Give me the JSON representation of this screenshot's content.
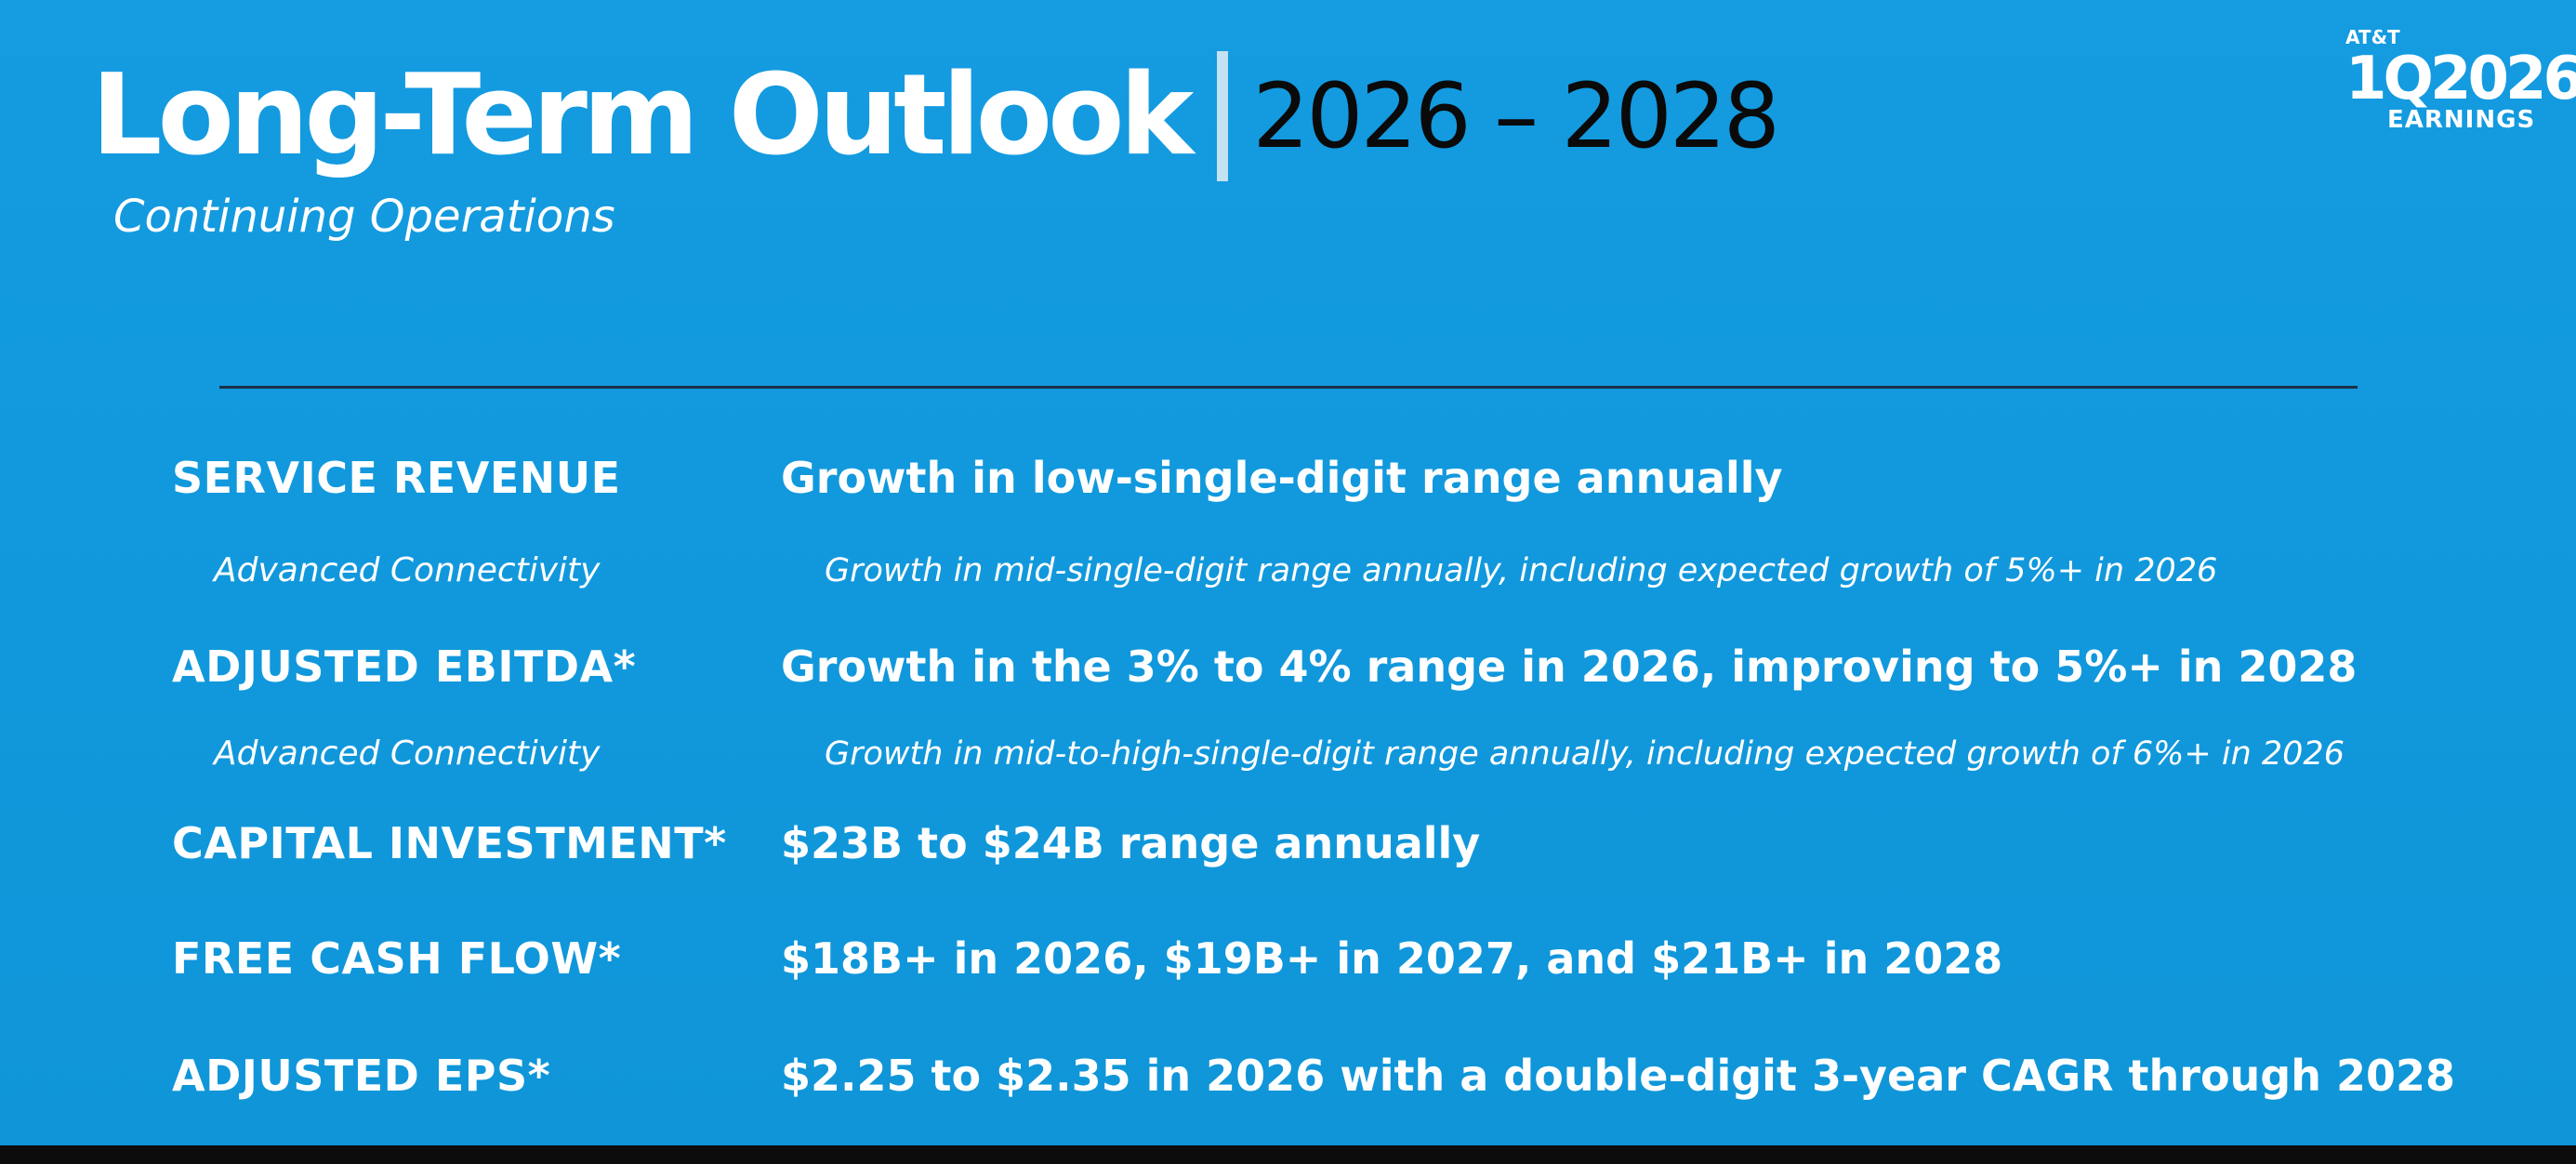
{
  "header": {
    "title": "Long-Term Outlook",
    "years": "2026 – 2028",
    "subtitle": "Continuing Operations"
  },
  "badge": {
    "brand": "AT&T",
    "quarter": "1Q2026",
    "label": "EARNINGS"
  },
  "outlook": [
    {
      "label": "SERVICE REVENUE",
      "value": "Growth in low-single-digit range annually"
    },
    {
      "label": "Advanced Connectivity",
      "value": "Growth in mid-single-digit range annually, including expected growth of 5%+ in 2026"
    },
    {
      "label": "ADJUSTED EBITDA*",
      "value": "Growth in the 3% to 4% range in 2026, improving to 5%+ in 2028"
    },
    {
      "label": "Advanced Connectivity",
      "value": "Growth in mid-to-high-single-digit range annually, including expected growth of 6%+ in 2026"
    },
    {
      "label": "CAPITAL INVESTMENT*",
      "value": "$23B to $24B range annually"
    },
    {
      "label": "FREE CASH FLOW*",
      "value": "$18B+ in 2026, $19B+ in 2027, and $21B+ in 2028"
    },
    {
      "label": "ADJUSTED EPS*",
      "value": "$2.25 to $2.35 in 2026 with a double-digit 3-year CAGR through 2028"
    }
  ],
  "colors": {
    "background": "#1198dc",
    "title_text": "#ffffff",
    "years_text": "#0a0a0a",
    "divider": "#1c3147"
  }
}
